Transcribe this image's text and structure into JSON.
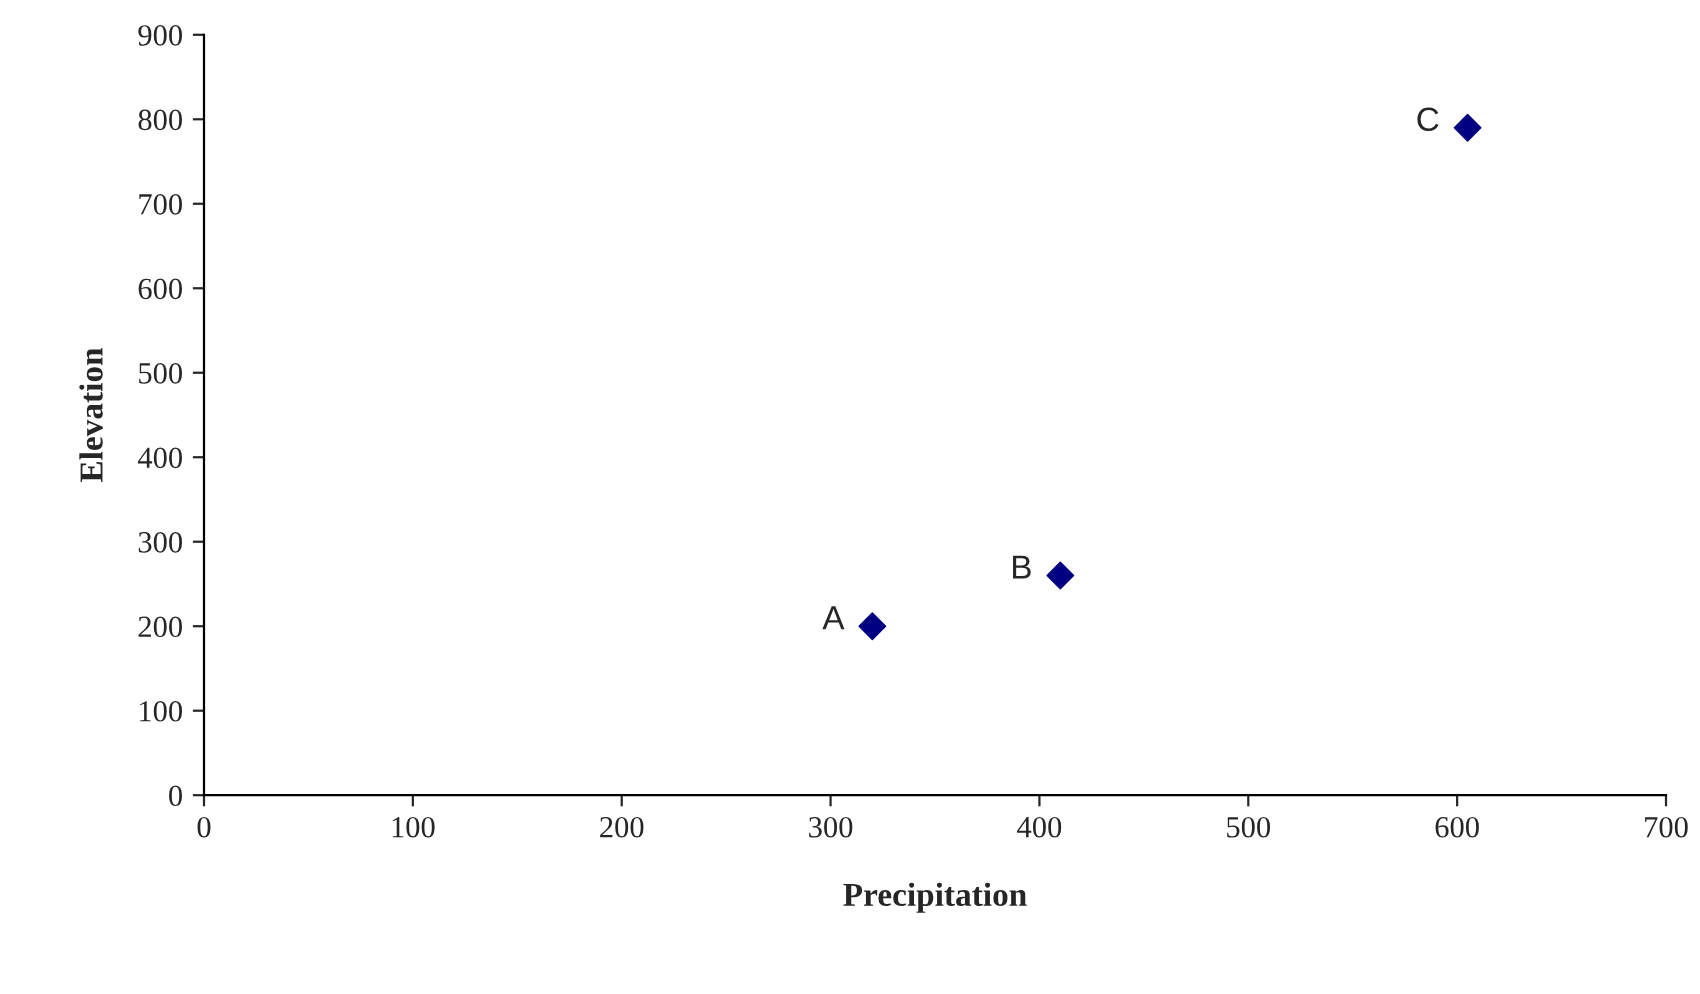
{
  "chart_data": {
    "type": "scatter",
    "xlabel": "Precipitation",
    "ylabel": "Elevation",
    "x": [
      320,
      410,
      605
    ],
    "series": [
      {
        "color": "#000080",
        "values": [
          200,
          260,
          790
        ]
      }
    ],
    "xlim": [
      0,
      700
    ],
    "xticks": [
      0,
      100,
      200,
      300,
      400,
      500,
      600,
      700
    ],
    "ylim": [
      0,
      900
    ],
    "yticks": [
      0,
      100,
      200,
      300,
      400,
      500,
      600,
      700,
      800,
      900
    ],
    "marker": "diamond",
    "grid": false,
    "legend": false,
    "annotations": [
      {
        "text": "A",
        "x": 320,
        "y": 200
      },
      {
        "text": "B",
        "x": 410,
        "y": 260
      },
      {
        "text": "C",
        "x": 605,
        "y": 790
      }
    ]
  }
}
